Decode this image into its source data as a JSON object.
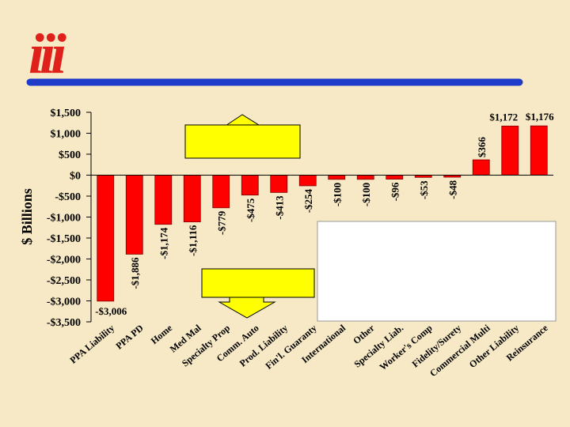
{
  "logo": {
    "text": "iii",
    "color": "#e0201a"
  },
  "colors": {
    "background": "#f7e9c6",
    "bar": "#ff0000",
    "bar_outline": "#800000",
    "header_rule": "#1f3cc8",
    "callout_fill": "#ffff00"
  },
  "chart_data": {
    "type": "bar",
    "ylabel": "$ Billions",
    "xlabel": "",
    "title": "",
    "ylim": [
      -3500,
      1500
    ],
    "yticks": [
      1500,
      1000,
      500,
      0,
      -500,
      -1000,
      -1500,
      -2000,
      -2500,
      -3000,
      -3500
    ],
    "ytick_labels": [
      "$1,500",
      "$1,000",
      "$500",
      "$0",
      "-$500",
      "-$1,000",
      "-$1,500",
      "-$2,000",
      "-$2,500",
      "-$3,000",
      "-$3,500"
    ],
    "grid": false,
    "categories": [
      "PPA Liability",
      "PPA PD",
      "Home",
      "Med Mal",
      "Specialty Prop",
      "Comm. Auto",
      "Prod. Liability",
      "Fin'l. Guaranty",
      "International",
      "Other",
      "Specialty Liab.",
      "Worker's Comp",
      "Fidelity/Surety",
      "Commercial Multi",
      "Other Liability",
      "Reinsurance"
    ],
    "values": [
      -3006,
      -1886,
      -1174,
      -1116,
      -779,
      -475,
      -413,
      -254,
      -100,
      -100,
      -96,
      -53,
      -48,
      366,
      1172,
      1176
    ],
    "data_labels": [
      "-$3,006",
      "-$1,886",
      "-$1,174",
      "-$1,116",
      "-$779",
      "-$475",
      "-$413",
      "-$254",
      "-$100",
      "-$100",
      "-$96",
      "-$53",
      "-$48",
      "$366",
      "$1,172",
      "$1,176"
    ]
  }
}
